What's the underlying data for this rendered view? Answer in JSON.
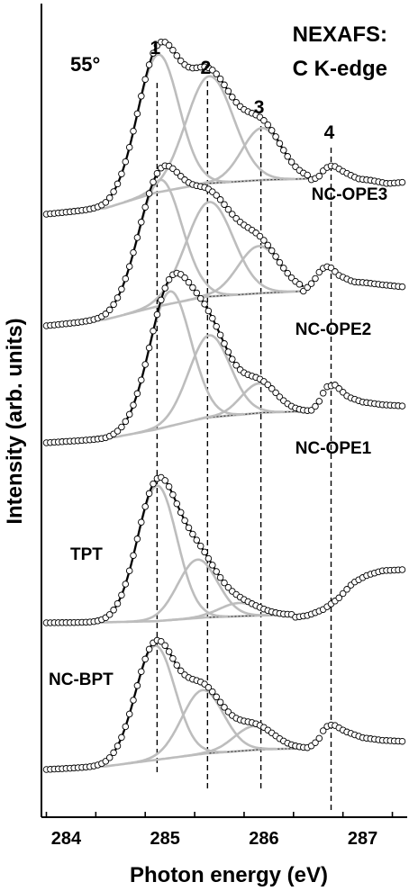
{
  "chart_data": {
    "type": "line",
    "title": "NEXAFS:",
    "subtitle": "C K-edge",
    "angle_label": "55°",
    "xlabel": "Photon energy (eV)",
    "ylabel": "Intensity (arb. units)",
    "xlim": [
      283.75,
      287.45
    ],
    "x_ticks": [
      284,
      285,
      286,
      287
    ],
    "x_tick_labels": [
      "284",
      "285",
      "286",
      "287"
    ],
    "y_ticks_visible": false,
    "grid": false,
    "peak_markers": [
      {
        "label": "1",
        "x": 284.92
      },
      {
        "label": "2",
        "x": 285.43
      },
      {
        "label": "3",
        "x": 285.97
      },
      {
        "label": "4",
        "x": 286.68
      }
    ],
    "series": [
      {
        "name": "NC-OPE3",
        "label_side": "right",
        "base": 0.0,
        "fit_end": 286.45,
        "background": [
          [
            283.8,
            0.0
          ],
          [
            284.4,
            0.1
          ],
          [
            284.9,
            0.35
          ],
          [
            285.4,
            0.5
          ],
          [
            286.0,
            0.56
          ],
          [
            286.45,
            0.58
          ]
        ],
        "components": [
          {
            "center": 284.93,
            "amp": 2.25,
            "width": 0.21
          },
          {
            "center": 285.45,
            "amp": 1.75,
            "width": 0.24
          },
          {
            "center": 285.98,
            "amp": 0.85,
            "width": 0.2
          }
        ],
        "tail": [
          [
            286.45,
            0.55
          ],
          [
            286.55,
            0.6
          ],
          [
            286.62,
            0.75
          ],
          [
            286.7,
            0.8
          ],
          [
            286.8,
            0.7
          ],
          [
            286.95,
            0.58
          ],
          [
            287.1,
            0.55
          ],
          [
            287.25,
            0.5
          ],
          [
            287.4,
            0.52
          ]
        ]
      },
      {
        "name": "NC-OPE2",
        "label_side": "right",
        "base": 0.0,
        "fit_end": 286.4,
        "background": [
          [
            283.8,
            0.0
          ],
          [
            284.4,
            0.1
          ],
          [
            284.9,
            0.3
          ],
          [
            285.4,
            0.46
          ],
          [
            286.0,
            0.52
          ],
          [
            286.4,
            0.55
          ]
        ],
        "components": [
          {
            "center": 284.95,
            "amp": 2.0,
            "width": 0.22
          },
          {
            "center": 285.45,
            "amp": 1.5,
            "width": 0.24
          },
          {
            "center": 285.95,
            "amp": 0.75,
            "width": 0.21
          }
        ],
        "tail": [
          [
            286.4,
            0.55
          ],
          [
            286.5,
            0.7
          ],
          [
            286.58,
            0.9
          ],
          [
            286.66,
            0.95
          ],
          [
            286.76,
            0.8
          ],
          [
            286.9,
            0.7
          ],
          [
            287.05,
            0.68
          ],
          [
            287.2,
            0.65
          ],
          [
            287.4,
            0.62
          ]
        ]
      },
      {
        "name": "NC-OPE1",
        "label_side": "right",
        "base": 0.0,
        "fit_end": 286.45,
        "background": [
          [
            283.8,
            0.0
          ],
          [
            284.4,
            0.06
          ],
          [
            284.9,
            0.2
          ],
          [
            285.4,
            0.38
          ],
          [
            286.0,
            0.46
          ],
          [
            286.45,
            0.48
          ]
        ],
        "components": [
          {
            "center": 285.05,
            "amp": 2.05,
            "width": 0.21
          },
          {
            "center": 285.45,
            "amp": 1.25,
            "width": 0.21
          },
          {
            "center": 285.95,
            "amp": 0.45,
            "width": 0.18
          }
        ],
        "tail": [
          [
            286.45,
            0.45
          ],
          [
            286.55,
            0.6
          ],
          [
            286.63,
            0.85
          ],
          [
            286.72,
            0.88
          ],
          [
            286.85,
            0.7
          ],
          [
            287.0,
            0.62
          ],
          [
            287.2,
            0.58
          ],
          [
            287.4,
            0.56
          ]
        ]
      },
      {
        "name": "TPT",
        "label_side": "left",
        "base": 0.0,
        "fit_end": 286.3,
        "background": [
          [
            283.8,
            0.0
          ],
          [
            284.4,
            0.01
          ],
          [
            284.9,
            0.03
          ],
          [
            285.4,
            0.1
          ],
          [
            286.0,
            0.14
          ],
          [
            286.3,
            0.15
          ]
        ],
        "components": [
          {
            "center": 284.92,
            "amp": 2.55,
            "width": 0.2
          },
          {
            "center": 285.33,
            "amp": 1.1,
            "width": 0.2
          },
          {
            "center": 285.75,
            "amp": 0.25,
            "width": 0.2
          }
        ],
        "tail": [
          [
            286.3,
            0.1
          ],
          [
            286.45,
            0.14
          ],
          [
            286.6,
            0.25
          ],
          [
            286.75,
            0.45
          ],
          [
            286.9,
            0.75
          ],
          [
            287.05,
            0.9
          ],
          [
            287.2,
            0.98
          ],
          [
            287.4,
            1.0
          ]
        ]
      },
      {
        "name": "NC-BPT",
        "label_side": "left",
        "base": 0.0,
        "fit_end": 286.45,
        "background": [
          [
            283.8,
            0.0
          ],
          [
            284.4,
            0.06
          ],
          [
            284.9,
            0.18
          ],
          [
            285.4,
            0.3
          ],
          [
            286.0,
            0.38
          ],
          [
            286.45,
            0.4
          ]
        ],
        "components": [
          {
            "center": 284.9,
            "amp": 2.15,
            "width": 0.2
          },
          {
            "center": 285.38,
            "amp": 1.2,
            "width": 0.21
          },
          {
            "center": 285.9,
            "amp": 0.45,
            "width": 0.2
          }
        ],
        "tail": [
          [
            286.45,
            0.4
          ],
          [
            286.55,
            0.55
          ],
          [
            286.62,
            0.8
          ],
          [
            286.7,
            0.85
          ],
          [
            286.82,
            0.72
          ],
          [
            287.0,
            0.6
          ],
          [
            287.2,
            0.55
          ],
          [
            287.4,
            0.53
          ]
        ]
      }
    ]
  }
}
